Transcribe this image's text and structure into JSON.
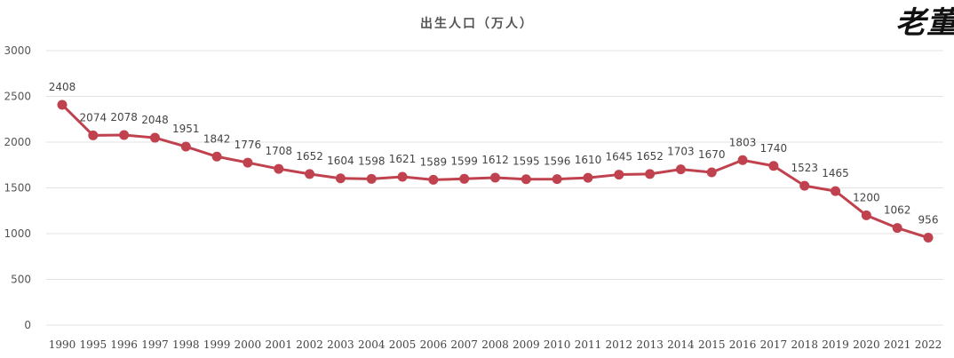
{
  "chart_data": {
    "type": "line",
    "title": "出生人口（万人）",
    "xlabel": "",
    "ylabel": "",
    "ylim": [
      0,
      3000
    ],
    "yticks": [
      0,
      500,
      1000,
      1500,
      2000,
      2500,
      3000
    ],
    "grid": true,
    "legend": "none",
    "categories": [
      "1990",
      "1995",
      "1996",
      "1997",
      "1998",
      "1999",
      "2000",
      "2001",
      "2002",
      "2003",
      "2004",
      "2005",
      "2006",
      "2007",
      "2008",
      "2009",
      "2010",
      "2011",
      "2012",
      "2013",
      "2014",
      "2015",
      "2016",
      "2017",
      "2018",
      "2019",
      "2020",
      "2021",
      "2022"
    ],
    "series": [
      {
        "values": [
          2408,
          2074,
          2078,
          2048,
          1951,
          1842,
          1776,
          1708,
          1652,
          1604,
          1598,
          1621,
          1589,
          1599,
          1612,
          1595,
          1596,
          1610,
          1645,
          1652,
          1703,
          1670,
          1803,
          1740,
          1523,
          1465,
          1200,
          1062,
          956
        ],
        "color": "#c0424e"
      }
    ]
  },
  "watermark": {
    "text": "老董"
  }
}
